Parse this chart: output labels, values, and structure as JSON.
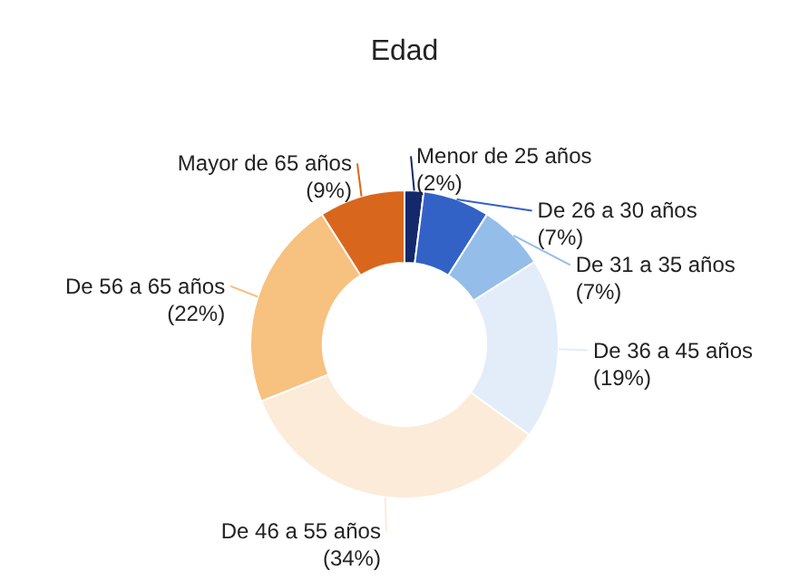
{
  "chart_data": {
    "type": "donut",
    "title": "Edad",
    "categories": [
      "Menor de 25 años",
      "De 26 a 30 años",
      "De 31 a 35 años",
      "De 36 a 45 años",
      "De 46 a 55 años",
      "De 56 a 65 años",
      "Mayor de 65 años"
    ],
    "values": [
      2,
      7,
      7,
      19,
      34,
      22,
      9
    ],
    "value_labels": [
      "(2%)",
      "(7%)",
      "(7%)",
      "(19%)",
      "(34%)",
      "(22%)",
      "(9%)"
    ],
    "colors": [
      "#13296b",
      "#3262c6",
      "#94bde9",
      "#e3edf9",
      "#fdebd9",
      "#f7c17f",
      "#d9661d"
    ],
    "legend": false
  }
}
